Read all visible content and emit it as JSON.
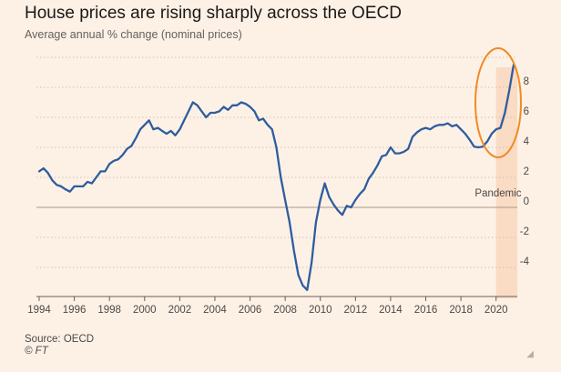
{
  "header": {
    "title": "House prices are rising sharply across the OECD",
    "subtitle": "Average annual % change (nominal prices)"
  },
  "footer": {
    "source": "Source: OECD",
    "credit": "© FT"
  },
  "icons": {
    "resize": "resize-grip-icon"
  },
  "chart_data": {
    "type": "line",
    "title": "House prices are rising sharply across the OECD",
    "subtitle": "Average annual % change (nominal prices)",
    "xlabel": "",
    "ylabel": "",
    "xlim": [
      1994,
      2021
    ],
    "ylim": [
      -6,
      10
    ],
    "x_ticks": [
      1994,
      1996,
      1998,
      2000,
      2002,
      2004,
      2006,
      2008,
      2010,
      2012,
      2014,
      2016,
      2018,
      2020
    ],
    "y_ticks": [
      -4,
      -2,
      0,
      2,
      4,
      6,
      8
    ],
    "y_axis_position": "right",
    "grid": "horizontal-dotted",
    "line_color": "#2e5d9e",
    "highlight_color": "#f7c9a8",
    "circle_color": "#f08a24",
    "annotations": [
      {
        "label": "Pandemic",
        "x_range": [
          2020,
          2021
        ]
      }
    ],
    "series": [
      {
        "values": [
          [
            1994.0,
            2.4
          ],
          [
            1994.25,
            2.6
          ],
          [
            1994.5,
            2.3
          ],
          [
            1994.75,
            1.8
          ],
          [
            1995.0,
            1.5
          ],
          [
            1995.25,
            1.4
          ],
          [
            1995.5,
            1.2
          ],
          [
            1995.75,
            1.05
          ],
          [
            1996.0,
            1.4
          ],
          [
            1996.25,
            1.4
          ],
          [
            1996.5,
            1.4
          ],
          [
            1996.75,
            1.7
          ],
          [
            1997.0,
            1.6
          ],
          [
            1997.25,
            2.0
          ],
          [
            1997.5,
            2.4
          ],
          [
            1997.75,
            2.4
          ],
          [
            1998.0,
            2.9
          ],
          [
            1998.25,
            3.1
          ],
          [
            1998.5,
            3.2
          ],
          [
            1998.75,
            3.5
          ],
          [
            1999.0,
            3.9
          ],
          [
            1999.25,
            4.1
          ],
          [
            1999.5,
            4.6
          ],
          [
            1999.75,
            5.2
          ],
          [
            2000.0,
            5.5
          ],
          [
            2000.25,
            5.8
          ],
          [
            2000.5,
            5.2
          ],
          [
            2000.75,
            5.3
          ],
          [
            2001.0,
            5.1
          ],
          [
            2001.25,
            4.9
          ],
          [
            2001.5,
            5.1
          ],
          [
            2001.75,
            4.8
          ],
          [
            2002.0,
            5.2
          ],
          [
            2002.25,
            5.8
          ],
          [
            2002.5,
            6.4
          ],
          [
            2002.75,
            7.0
          ],
          [
            2003.0,
            6.8
          ],
          [
            2003.25,
            6.4
          ],
          [
            2003.5,
            6.0
          ],
          [
            2003.75,
            6.3
          ],
          [
            2004.0,
            6.3
          ],
          [
            2004.25,
            6.4
          ],
          [
            2004.5,
            6.7
          ],
          [
            2004.75,
            6.5
          ],
          [
            2005.0,
            6.8
          ],
          [
            2005.25,
            6.8
          ],
          [
            2005.5,
            7.0
          ],
          [
            2005.75,
            6.9
          ],
          [
            2006.0,
            6.7
          ],
          [
            2006.25,
            6.4
          ],
          [
            2006.5,
            5.8
          ],
          [
            2006.75,
            5.9
          ],
          [
            2007.0,
            5.5
          ],
          [
            2007.25,
            5.2
          ],
          [
            2007.5,
            4.0
          ],
          [
            2007.75,
            2.0
          ],
          [
            2008.0,
            0.5
          ],
          [
            2008.25,
            -1.0
          ],
          [
            2008.5,
            -2.9
          ],
          [
            2008.75,
            -4.5
          ],
          [
            2009.0,
            -5.2
          ],
          [
            2009.25,
            -5.5
          ],
          [
            2009.5,
            -3.7
          ],
          [
            2009.75,
            -1.0
          ],
          [
            2010.0,
            0.5
          ],
          [
            2010.25,
            1.6
          ],
          [
            2010.5,
            0.7
          ],
          [
            2010.75,
            0.2
          ],
          [
            2011.0,
            -0.2
          ],
          [
            2011.25,
            -0.5
          ],
          [
            2011.5,
            0.1
          ],
          [
            2011.75,
            0.0
          ],
          [
            2012.0,
            0.5
          ],
          [
            2012.25,
            0.9
          ],
          [
            2012.5,
            1.2
          ],
          [
            2012.75,
            1.9
          ],
          [
            2013.0,
            2.3
          ],
          [
            2013.25,
            2.8
          ],
          [
            2013.5,
            3.4
          ],
          [
            2013.75,
            3.5
          ],
          [
            2014.0,
            4.0
          ],
          [
            2014.25,
            3.6
          ],
          [
            2014.5,
            3.6
          ],
          [
            2014.75,
            3.7
          ],
          [
            2015.0,
            3.9
          ],
          [
            2015.25,
            4.7
          ],
          [
            2015.5,
            5.0
          ],
          [
            2015.75,
            5.2
          ],
          [
            2016.0,
            5.3
          ],
          [
            2016.25,
            5.2
          ],
          [
            2016.5,
            5.4
          ],
          [
            2016.75,
            5.5
          ],
          [
            2017.0,
            5.5
          ],
          [
            2017.25,
            5.6
          ],
          [
            2017.5,
            5.4
          ],
          [
            2017.75,
            5.5
          ],
          [
            2018.0,
            5.2
          ],
          [
            2018.25,
            4.9
          ],
          [
            2018.5,
            4.5
          ],
          [
            2018.75,
            4.05
          ],
          [
            2019.0,
            4.0
          ],
          [
            2019.25,
            4.05
          ],
          [
            2019.5,
            4.4
          ],
          [
            2019.75,
            4.9
          ],
          [
            2020.0,
            5.2
          ],
          [
            2020.25,
            5.3
          ],
          [
            2020.5,
            6.3
          ],
          [
            2020.75,
            7.8
          ],
          [
            2021.0,
            9.5
          ]
        ]
      }
    ]
  }
}
